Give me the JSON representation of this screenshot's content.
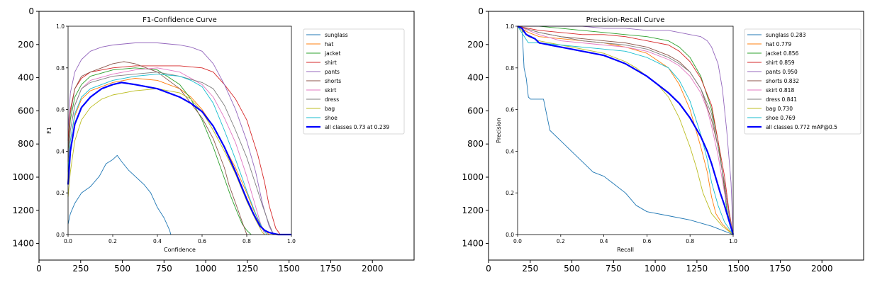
{
  "colors": [
    "#1f77b4",
    "#ff7f0e",
    "#2ca02c",
    "#d62728",
    "#9467bd",
    "#8c564b",
    "#e377c2",
    "#7f7f7f",
    "#bcbd22",
    "#17becf"
  ],
  "all_color": "#0000ff",
  "outer_axes": {
    "xlim": [
      0,
      2250
    ],
    "ylim": [
      1500,
      0
    ],
    "xticks": [
      "0",
      "250",
      "500",
      "750",
      "1000",
      "1250",
      "1500",
      "1750",
      "2000"
    ],
    "yticks": [
      "0",
      "200",
      "400",
      "600",
      "800",
      "1000",
      "1200",
      "1400"
    ]
  },
  "chart_data": [
    {
      "type": "line",
      "title": "F1-Confidence Curve",
      "xlabel": "Confidence",
      "ylabel": "F1",
      "xlim": [
        0,
        1
      ],
      "ylim": [
        0,
        1
      ],
      "xticks": [
        "0.0",
        "0.2",
        "0.4",
        "0.6",
        "0.8",
        "1.0"
      ],
      "yticks": [
        "0.0",
        "0.2",
        "0.4",
        "0.6",
        "0.8",
        "1.0"
      ],
      "legend_position": "outside-right",
      "series": [
        {
          "name": "sunglass",
          "x": [
            0,
            0.01,
            0.03,
            0.06,
            0.1,
            0.14,
            0.17,
            0.2,
            0.22,
            0.24,
            0.27,
            0.3,
            0.34,
            0.37,
            0.4,
            0.43,
            0.455,
            0.46
          ],
          "y": [
            0.05,
            0.1,
            0.15,
            0.2,
            0.23,
            0.28,
            0.34,
            0.36,
            0.38,
            0.35,
            0.31,
            0.28,
            0.24,
            0.2,
            0.13,
            0.08,
            0.02,
            0
          ]
        },
        {
          "name": "hat",
          "x": [
            0,
            0.01,
            0.03,
            0.06,
            0.1,
            0.15,
            0.2,
            0.3,
            0.4,
            0.5,
            0.55,
            0.6,
            0.65,
            0.7,
            0.75,
            0.8,
            0.83,
            0.86,
            0.88,
            0.9
          ],
          "y": [
            0.3,
            0.45,
            0.57,
            0.65,
            0.69,
            0.71,
            0.73,
            0.75,
            0.74,
            0.7,
            0.66,
            0.6,
            0.52,
            0.42,
            0.32,
            0.2,
            0.12,
            0.05,
            0.02,
            0
          ]
        },
        {
          "name": "jacket",
          "x": [
            0,
            0.01,
            0.03,
            0.06,
            0.1,
            0.2,
            0.3,
            0.4,
            0.5,
            0.55,
            0.6,
            0.65,
            0.7,
            0.73,
            0.76,
            0.78,
            0.8,
            0.82
          ],
          "y": [
            0.4,
            0.55,
            0.66,
            0.72,
            0.76,
            0.79,
            0.8,
            0.79,
            0.72,
            0.65,
            0.55,
            0.42,
            0.27,
            0.18,
            0.1,
            0.05,
            0.02,
            0
          ]
        },
        {
          "name": "shirt",
          "x": [
            0,
            0.01,
            0.03,
            0.06,
            0.1,
            0.2,
            0.3,
            0.4,
            0.5,
            0.6,
            0.65,
            0.7,
            0.75,
            0.8,
            0.85,
            0.88,
            0.9,
            0.93,
            0.95
          ],
          "y": [
            0.45,
            0.6,
            0.7,
            0.75,
            0.78,
            0.8,
            0.81,
            0.81,
            0.81,
            0.8,
            0.78,
            0.72,
            0.65,
            0.55,
            0.38,
            0.25,
            0.14,
            0.03,
            0
          ]
        },
        {
          "name": "pants",
          "x": [
            0,
            0.01,
            0.03,
            0.06,
            0.1,
            0.15,
            0.2,
            0.3,
            0.4,
            0.5,
            0.55,
            0.6,
            0.65,
            0.7,
            0.75,
            0.8,
            0.84,
            0.87,
            0.9,
            0.92
          ],
          "y": [
            0.5,
            0.68,
            0.78,
            0.84,
            0.88,
            0.9,
            0.91,
            0.92,
            0.92,
            0.91,
            0.9,
            0.88,
            0.82,
            0.72,
            0.6,
            0.45,
            0.3,
            0.15,
            0.04,
            0
          ]
        },
        {
          "name": "shorts",
          "x": [
            0,
            0.01,
            0.03,
            0.06,
            0.1,
            0.2,
            0.25,
            0.3,
            0.4,
            0.5,
            0.6,
            0.65,
            0.7,
            0.72,
            0.75,
            0.78,
            0.8
          ],
          "y": [
            0.4,
            0.58,
            0.7,
            0.76,
            0.78,
            0.82,
            0.83,
            0.82,
            0.78,
            0.7,
            0.56,
            0.46,
            0.32,
            0.24,
            0.15,
            0.06,
            0
          ]
        },
        {
          "name": "skirt",
          "x": [
            0,
            0.01,
            0.03,
            0.06,
            0.1,
            0.2,
            0.3,
            0.4,
            0.5,
            0.6,
            0.65,
            0.7,
            0.75,
            0.8,
            0.83,
            0.86,
            0.88
          ],
          "y": [
            0.35,
            0.5,
            0.62,
            0.7,
            0.74,
            0.77,
            0.79,
            0.8,
            0.78,
            0.72,
            0.66,
            0.56,
            0.44,
            0.28,
            0.17,
            0.06,
            0
          ]
        },
        {
          "name": "dress",
          "x": [
            0,
            0.01,
            0.03,
            0.06,
            0.1,
            0.2,
            0.3,
            0.4,
            0.5,
            0.6,
            0.65,
            0.7,
            0.75,
            0.8,
            0.84,
            0.87,
            0.9,
            0.92
          ],
          "y": [
            0.35,
            0.5,
            0.62,
            0.7,
            0.73,
            0.76,
            0.77,
            0.78,
            0.76,
            0.73,
            0.7,
            0.62,
            0.5,
            0.37,
            0.24,
            0.14,
            0.05,
            0
          ]
        },
        {
          "name": "bag",
          "x": [
            0,
            0.01,
            0.03,
            0.06,
            0.1,
            0.15,
            0.2,
            0.3,
            0.4,
            0.5,
            0.55,
            0.6,
            0.65,
            0.7,
            0.75,
            0.8,
            0.84,
            0.87,
            0.88
          ],
          "y": [
            0.18,
            0.3,
            0.45,
            0.55,
            0.61,
            0.65,
            0.67,
            0.69,
            0.7,
            0.68,
            0.65,
            0.59,
            0.5,
            0.4,
            0.29,
            0.16,
            0.07,
            0.01,
            0
          ]
        },
        {
          "name": "shoe",
          "x": [
            0,
            0.01,
            0.03,
            0.06,
            0.1,
            0.15,
            0.2,
            0.3,
            0.4,
            0.5,
            0.55,
            0.6,
            0.65,
            0.7,
            0.75,
            0.8,
            0.84,
            0.87,
            0.89
          ],
          "y": [
            0.3,
            0.45,
            0.58,
            0.66,
            0.7,
            0.72,
            0.74,
            0.76,
            0.77,
            0.76,
            0.74,
            0.71,
            0.63,
            0.5,
            0.36,
            0.21,
            0.1,
            0.03,
            0
          ]
        },
        {
          "name": "all classes 0.73 at 0.239",
          "x": [
            0,
            0.01,
            0.03,
            0.06,
            0.1,
            0.15,
            0.2,
            0.239,
            0.3,
            0.4,
            0.5,
            0.55,
            0.6,
            0.65,
            0.7,
            0.75,
            0.8,
            0.83,
            0.86,
            0.88,
            0.9,
            0.94,
            1.0
          ],
          "y": [
            0.24,
            0.4,
            0.53,
            0.61,
            0.66,
            0.7,
            0.72,
            0.73,
            0.72,
            0.7,
            0.66,
            0.63,
            0.59,
            0.52,
            0.42,
            0.3,
            0.17,
            0.1,
            0.04,
            0.02,
            0.01,
            0,
            0
          ],
          "bold": true
        }
      ]
    },
    {
      "type": "line",
      "title": "Precision-Recall Curve",
      "xlabel": "Recall",
      "ylabel": "Precision",
      "xlim": [
        0,
        1
      ],
      "ylim": [
        0,
        1
      ],
      "xticks": [
        "0.0",
        "0.2",
        "0.4",
        "0.6",
        "0.8",
        "1.0"
      ],
      "yticks": [
        "0.0",
        "0.2",
        "0.4",
        "0.6",
        "0.8",
        "1.0"
      ],
      "legend_position": "outside-right",
      "series": [
        {
          "name": "sunglass 0.283",
          "x": [
            0,
            0.02,
            0.03,
            0.04,
            0.05,
            0.06,
            0.08,
            0.1,
            0.12,
            0.15,
            0.2,
            0.25,
            0.3,
            0.35,
            0.4,
            0.45,
            0.5,
            0.55,
            0.6,
            0.7,
            0.8,
            0.9,
            0.95,
            1.0
          ],
          "y": [
            1.0,
            1.0,
            0.8,
            0.75,
            0.66,
            0.65,
            0.65,
            0.65,
            0.65,
            0.5,
            0.45,
            0.4,
            0.35,
            0.3,
            0.28,
            0.24,
            0.2,
            0.14,
            0.11,
            0.09,
            0.07,
            0.04,
            0.02,
            0.0
          ]
        },
        {
          "name": "hat 0.779",
          "x": [
            0,
            0.05,
            0.1,
            0.2,
            0.3,
            0.4,
            0.5,
            0.6,
            0.7,
            0.75,
            0.8,
            0.85,
            0.88,
            0.9,
            0.92,
            0.95,
            1.0
          ],
          "y": [
            1.0,
            0.97,
            0.95,
            0.94,
            0.93,
            0.92,
            0.9,
            0.87,
            0.8,
            0.72,
            0.6,
            0.42,
            0.3,
            0.18,
            0.1,
            0.05,
            0.0
          ]
        },
        {
          "name": "jacket 0.856",
          "x": [
            0,
            0.1,
            0.2,
            0.3,
            0.4,
            0.5,
            0.6,
            0.7,
            0.75,
            0.8,
            0.85,
            0.9,
            0.93,
            0.95,
            0.97,
            1.0
          ],
          "y": [
            1.0,
            1.0,
            0.99,
            0.98,
            0.97,
            0.96,
            0.95,
            0.93,
            0.9,
            0.85,
            0.76,
            0.6,
            0.45,
            0.3,
            0.12,
            0.0
          ]
        },
        {
          "name": "shirt 0.859",
          "x": [
            0,
            0.1,
            0.2,
            0.3,
            0.4,
            0.5,
            0.6,
            0.7,
            0.75,
            0.8,
            0.85,
            0.9,
            0.93,
            0.96,
            0.98,
            1.0
          ],
          "y": [
            1.0,
            0.98,
            0.97,
            0.96,
            0.96,
            0.95,
            0.93,
            0.91,
            0.88,
            0.83,
            0.75,
            0.62,
            0.45,
            0.28,
            0.12,
            0.0
          ]
        },
        {
          "name": "pants 0.950",
          "x": [
            0,
            0.1,
            0.2,
            0.3,
            0.4,
            0.5,
            0.6,
            0.7,
            0.75,
            0.8,
            0.85,
            0.88,
            0.9,
            0.93,
            0.95,
            0.97,
            0.99,
            1.0
          ],
          "y": [
            1.0,
            1.0,
            1.0,
            1.0,
            0.99,
            0.99,
            0.98,
            0.98,
            0.97,
            0.96,
            0.95,
            0.93,
            0.9,
            0.82,
            0.7,
            0.5,
            0.25,
            0.0
          ]
        },
        {
          "name": "shorts 0.832",
          "x": [
            0,
            0.1,
            0.2,
            0.3,
            0.4,
            0.5,
            0.6,
            0.7,
            0.75,
            0.8,
            0.85,
            0.9,
            0.93,
            0.95,
            0.97,
            1.0
          ],
          "y": [
            1.0,
            0.97,
            0.95,
            0.94,
            0.93,
            0.92,
            0.9,
            0.86,
            0.83,
            0.78,
            0.7,
            0.55,
            0.42,
            0.3,
            0.15,
            0.0
          ]
        },
        {
          "name": "skirt 0.818",
          "x": [
            0,
            0.1,
            0.2,
            0.3,
            0.4,
            0.5,
            0.6,
            0.7,
            0.75,
            0.8,
            0.85,
            0.88,
            0.9,
            0.93,
            0.96,
            1.0
          ],
          "y": [
            1.0,
            0.96,
            0.93,
            0.92,
            0.91,
            0.9,
            0.88,
            0.84,
            0.81,
            0.76,
            0.68,
            0.6,
            0.52,
            0.38,
            0.2,
            0.0
          ]
        },
        {
          "name": "dress 0.841",
          "x": [
            0,
            0.1,
            0.2,
            0.3,
            0.4,
            0.5,
            0.6,
            0.7,
            0.75,
            0.8,
            0.85,
            0.9,
            0.93,
            0.96,
            0.98,
            1.0
          ],
          "y": [
            1.0,
            0.97,
            0.95,
            0.93,
            0.92,
            0.91,
            0.89,
            0.85,
            0.82,
            0.78,
            0.7,
            0.58,
            0.42,
            0.25,
            0.1,
            0.0
          ]
        },
        {
          "name": "bag 0.730",
          "x": [
            0,
            0.05,
            0.1,
            0.2,
            0.3,
            0.4,
            0.5,
            0.55,
            0.6,
            0.65,
            0.7,
            0.75,
            0.8,
            0.83,
            0.86,
            0.9,
            0.95,
            1.0
          ],
          "y": [
            1.0,
            0.95,
            0.93,
            0.91,
            0.89,
            0.87,
            0.83,
            0.8,
            0.76,
            0.72,
            0.66,
            0.56,
            0.42,
            0.32,
            0.2,
            0.1,
            0.04,
            0.0
          ]
        },
        {
          "name": "shoe 0.769",
          "x": [
            0,
            0.05,
            0.1,
            0.2,
            0.3,
            0.4,
            0.5,
            0.6,
            0.7,
            0.75,
            0.8,
            0.85,
            0.88,
            0.9,
            0.93,
            0.96,
            1.0
          ],
          "y": [
            1.0,
            0.92,
            0.92,
            0.91,
            0.9,
            0.89,
            0.88,
            0.85,
            0.8,
            0.74,
            0.64,
            0.48,
            0.36,
            0.25,
            0.14,
            0.06,
            0.0
          ]
        },
        {
          "name": "all classes 0.772 mAP@0.5",
          "x": [
            0,
            0.02,
            0.04,
            0.06,
            0.08,
            0.1,
            0.15,
            0.2,
            0.25,
            0.3,
            0.35,
            0.4,
            0.45,
            0.5,
            0.55,
            0.6,
            0.65,
            0.7,
            0.75,
            0.8,
            0.85,
            0.88,
            0.9,
            0.92,
            0.94,
            0.96,
            0.98,
            1.0
          ],
          "y": [
            1.0,
            0.99,
            0.96,
            0.95,
            0.94,
            0.92,
            0.91,
            0.9,
            0.89,
            0.88,
            0.87,
            0.86,
            0.84,
            0.82,
            0.79,
            0.76,
            0.72,
            0.68,
            0.63,
            0.56,
            0.47,
            0.4,
            0.34,
            0.27,
            0.2,
            0.14,
            0.07,
            0.0
          ],
          "bold": true
        }
      ]
    }
  ]
}
